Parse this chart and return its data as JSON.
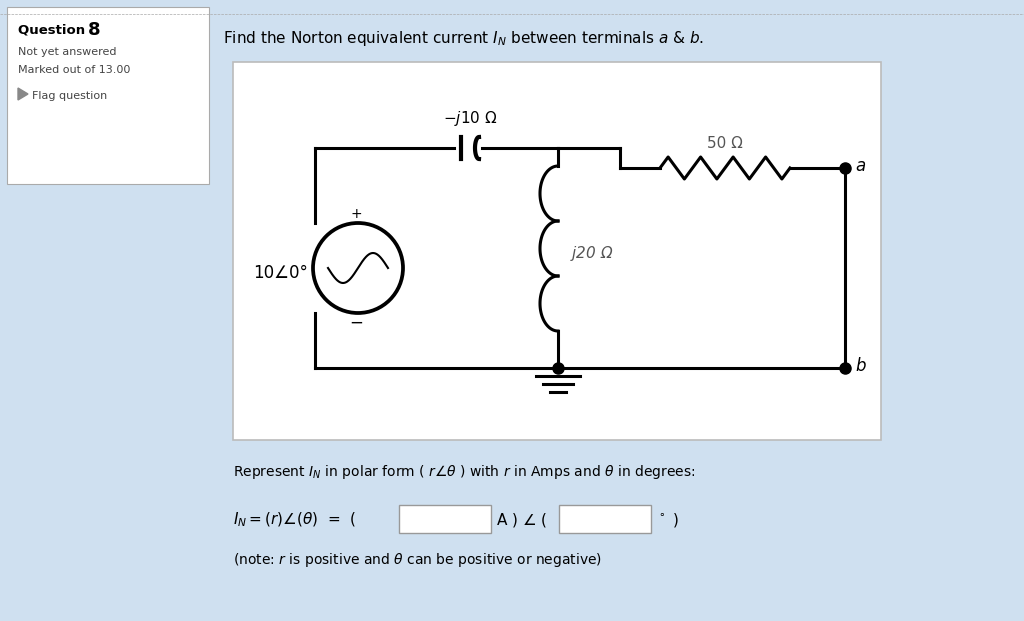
{
  "bg_color": "#cfe0f0",
  "circuit_bg": "#ffffff",
  "left_panel_bg": "#ffffff",
  "title_text": "Find the Norton equivalent current $I_N$ between terminals $a$ & $b$.",
  "question_label": "Question ",
  "question_num": "8",
  "not_yet_answered": "Not yet answered",
  "marked_out": "Marked out of 13.00",
  "flag_question": "Flag question",
  "component_neg_j10": "$-j$10 Ω",
  "component_50": "50 Ω",
  "component_j20": "$j$20 Ω",
  "source_label": "10∠0°",
  "terminal_a": "$a$",
  "terminal_b": "$b$",
  "represent_text": "Represent $I_N$ in polar form ( $r \\angle \\theta$ ) with $r$ in Amps and $\\theta$ in degrees:",
  "note_text": "(note: $r$ is positive and $\\theta$ can be positive or negative)",
  "plus_label": "+",
  "minus_label": "−",
  "lw": 2.2
}
